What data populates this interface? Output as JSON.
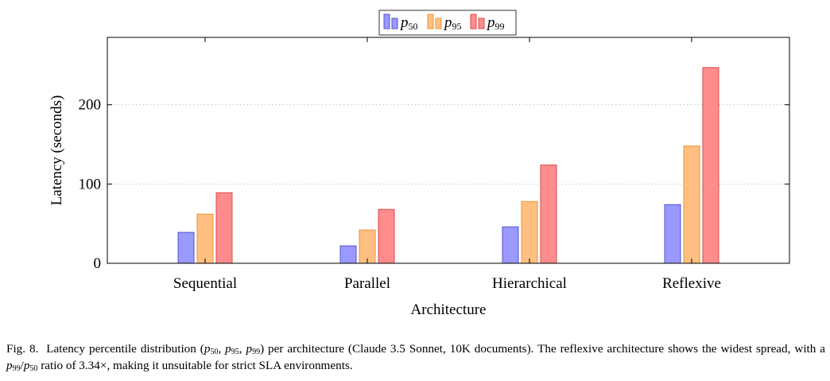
{
  "chart_data": {
    "type": "bar",
    "categories": [
      "Sequential",
      "Parallel",
      "Hierarchical",
      "Reflexive"
    ],
    "series": [
      {
        "name": "p50",
        "label_main": "p",
        "label_sub": "50",
        "color": "#9999ff",
        "edge": "#5555cc",
        "values": [
          39,
          22,
          46,
          74
        ]
      },
      {
        "name": "p95",
        "label_main": "p",
        "label_sub": "95",
        "color": "#ffbf80",
        "edge": "#e69a3c",
        "values": [
          62,
          42,
          78,
          148
        ]
      },
      {
        "name": "p99",
        "label_main": "p",
        "label_sub": "99",
        "color": "#ff8c8c",
        "edge": "#d94c4c",
        "values": [
          89,
          68,
          124,
          247
        ]
      }
    ],
    "title": "",
    "xlabel": "Architecture",
    "ylabel": "Latency (seconds)",
    "ylim": [
      0,
      285
    ],
    "yticks": [
      0,
      100,
      200
    ],
    "grid": "dotted horizontal at major ticks",
    "legend_position": "top-center"
  },
  "caption": {
    "label": "Fig. 8.",
    "line1_a": "Latency percentile distribution (",
    "p": "p",
    "sub50": "50",
    "sub95": "95",
    "sub99": "99",
    "sep": ", ",
    "line1_b": ") per architecture (Claude 3.5 Sonnet, 10K documents). The reflexive architecture shows the widest spread, with a ",
    "slash": "/",
    "line2_b": " ratio of 3.34×, making it unsuitable for strict SLA environments."
  }
}
